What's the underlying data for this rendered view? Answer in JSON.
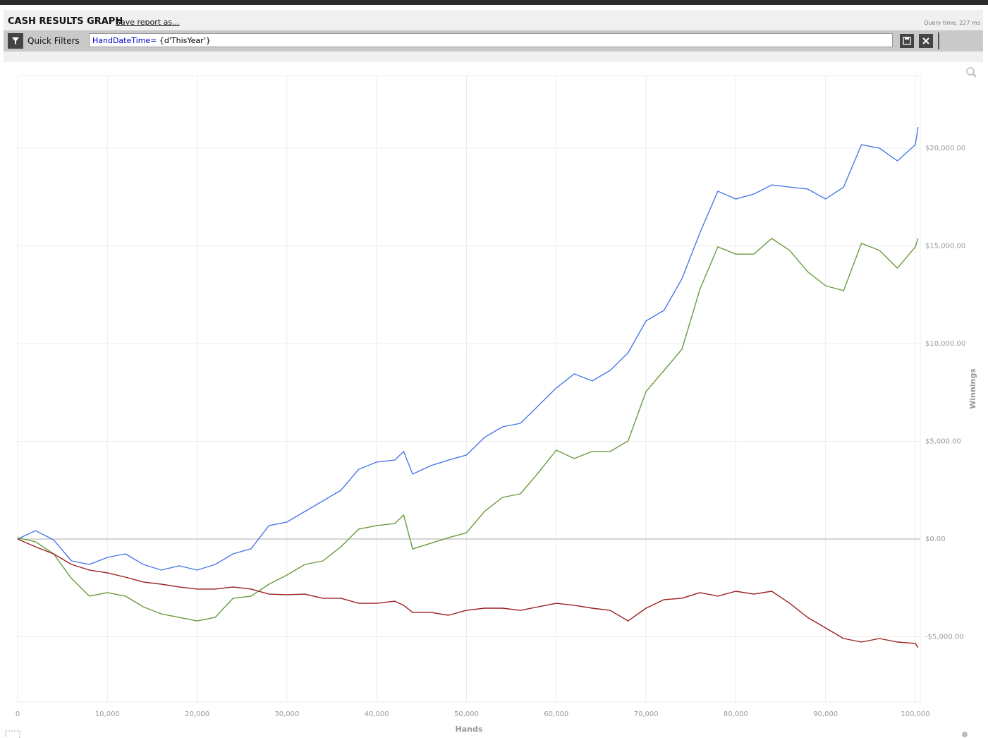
{
  "header": {
    "title": "CASH RESULTS GRAPH",
    "save_link": "Save report as...",
    "query_time": "Query time: 227 ms"
  },
  "filter": {
    "label": "Quick Filters",
    "field": "HandDateTime=",
    "value": "{d'ThisYear'}"
  },
  "chart_data": {
    "type": "line",
    "x_label": "Hands",
    "y_label": "Winnings",
    "x": [
      0,
      2000,
      4000,
      6000,
      8000,
      10000,
      12000,
      14000,
      16000,
      18000,
      20000,
      22000,
      24000,
      26000,
      28000,
      30000,
      32000,
      34000,
      36000,
      38000,
      40000,
      42000,
      43000,
      44000,
      46000,
      48000,
      50000,
      52000,
      54000,
      56000,
      58000,
      60000,
      62000,
      64000,
      66000,
      68000,
      70000,
      72000,
      74000,
      76000,
      78000,
      80000,
      82000,
      84000,
      86000,
      88000,
      90000,
      92000,
      94000,
      96000,
      98000,
      100000,
      100300
    ],
    "series": [
      {
        "color": "#4a78e8",
        "values": [
          0,
          430,
          -40,
          -1120,
          -1300,
          -940,
          -760,
          -1300,
          -1590,
          -1370,
          -1590,
          -1300,
          -760,
          -500,
          690,
          870,
          1410,
          1950,
          2490,
          3570,
          3940,
          4040,
          4480,
          3320,
          3750,
          4040,
          4300,
          5200,
          5740,
          5920,
          6820,
          7730,
          8450,
          8090,
          8630,
          9530,
          11160,
          11700,
          13320,
          15670,
          17800,
          17400,
          17650,
          18120,
          18010,
          17910,
          17400,
          18010,
          20180,
          20000,
          19350,
          20180,
          21080
        ]
      },
      {
        "color": "#6a9a3c",
        "values": [
          70,
          -140,
          -760,
          -2020,
          -2920,
          -2740,
          -2920,
          -3470,
          -3830,
          -4010,
          -4190,
          -4010,
          -3030,
          -2920,
          -2310,
          -1840,
          -1300,
          -1120,
          -400,
          510,
          690,
          790,
          1230,
          -510,
          -220,
          70,
          320,
          1410,
          2130,
          2310,
          3390,
          4550,
          4120,
          4480,
          4480,
          5020,
          7550,
          8630,
          9710,
          12780,
          14950,
          14580,
          14580,
          15380,
          14770,
          13680,
          12960,
          12710,
          15130,
          14770,
          13860,
          14950,
          15380
        ]
      },
      {
        "color": "#9b1f1f",
        "values": [
          0,
          -400,
          -760,
          -1300,
          -1590,
          -1730,
          -1950,
          -2200,
          -2310,
          -2450,
          -2560,
          -2560,
          -2450,
          -2560,
          -2820,
          -2850,
          -2820,
          -3030,
          -3030,
          -3290,
          -3290,
          -3180,
          -3390,
          -3750,
          -3750,
          -3900,
          -3650,
          -3540,
          -3540,
          -3650,
          -3470,
          -3290,
          -3390,
          -3540,
          -3650,
          -4190,
          -3540,
          -3100,
          -3030,
          -2740,
          -2920,
          -2670,
          -2820,
          -2670,
          -3290,
          -4010,
          -4550,
          -5090,
          -5270,
          -5090,
          -5270,
          -5340,
          -5560
        ]
      }
    ],
    "xlim": [
      0,
      100550
    ],
    "ylim": [
      -8340,
      23720
    ],
    "xticks": [
      0,
      {
        "value": 10000,
        "label": "10,000"
      },
      {
        "value": 20000,
        "label": "20,000"
      },
      {
        "value": 30000,
        "label": "30,000"
      },
      {
        "value": 40000,
        "label": "40,000"
      },
      {
        "value": 50000,
        "label": "50,000"
      },
      {
        "value": 60000,
        "label": "60,000"
      },
      {
        "value": 70000,
        "label": "70,000"
      },
      {
        "value": 80000,
        "label": "80,000"
      },
      {
        "value": 90000,
        "label": "90,000"
      },
      {
        "value": 100000,
        "label": "100,000"
      }
    ],
    "yticks": [
      {
        "value": -5000,
        "label": "-$5,000.00"
      },
      {
        "value": 0,
        "label": "$0.00"
      },
      {
        "value": 5000,
        "label": "$5,000.00"
      },
      {
        "value": 10000,
        "label": "$10,000.00"
      },
      {
        "value": 15000,
        "label": "$15,000.00"
      },
      {
        "value": 20000,
        "label": "$20,000.00"
      }
    ],
    "grid": true
  }
}
